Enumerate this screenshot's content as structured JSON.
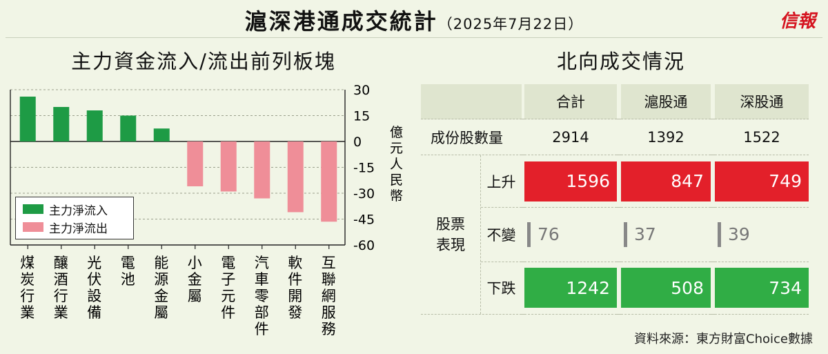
{
  "header": {
    "title": "滬深港通成交統計",
    "date": "（2025年7月22日）",
    "brand": "信報"
  },
  "left_panel": {
    "title": "主力資金流入/流出前列板塊"
  },
  "right_panel": {
    "title": "北向成交情況"
  },
  "chart_data": {
    "type": "bar",
    "title": "主力資金流入/流出前列板塊",
    "ylabel": "億元人民幣",
    "ylim": [
      -60,
      30
    ],
    "yticks": [
      30,
      15,
      0,
      -15,
      -30,
      -45,
      -60
    ],
    "grid": true,
    "legend_position": "bottom-left",
    "categories": [
      "煤炭行業",
      "釀酒行業",
      "光伏設備",
      "電池",
      "能源金屬",
      "小金屬",
      "電子元件",
      "汽車零部件",
      "軟件開發",
      "互聯網服務"
    ],
    "values": [
      26,
      20,
      18,
      15,
      7.5,
      -26,
      -29,
      -33,
      -41,
      -46.5
    ],
    "series": [
      {
        "name": "主力淨流入",
        "color": "#1e9b45"
      },
      {
        "name": "主力淨流出",
        "color": "#ef8e98"
      }
    ]
  },
  "table": {
    "col_headers": [
      "合計",
      "滬股通",
      "深股通"
    ],
    "count_row": {
      "label": "成份股數量",
      "values": [
        "2914",
        "1392",
        "1522"
      ]
    },
    "group_label": [
      "股票",
      "表現"
    ],
    "rows": [
      {
        "label": "上升",
        "kind": "up",
        "color": "#e3202a",
        "values": [
          "1596",
          "847",
          "749"
        ]
      },
      {
        "label": "不變",
        "kind": "flat",
        "color": "#888888",
        "values": [
          "76",
          "37",
          "39"
        ]
      },
      {
        "label": "下跌",
        "kind": "down",
        "color": "#30ad45",
        "values": [
          "1242",
          "508",
          "734"
        ]
      }
    ]
  },
  "footer": {
    "source": "資料來源：東方財富Choice數據"
  }
}
